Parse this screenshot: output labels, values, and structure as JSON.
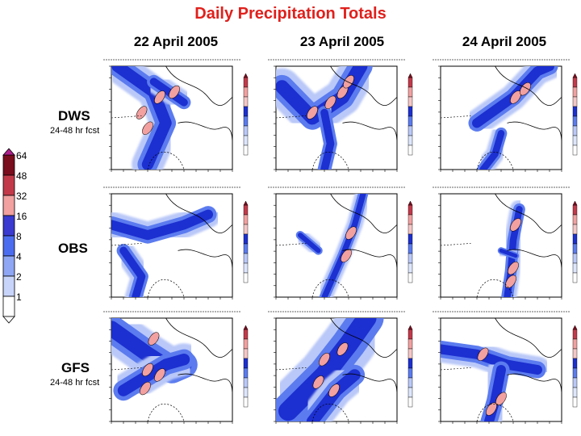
{
  "title": "Daily Precipitation Totals",
  "columns": [
    "22 April 2005",
    "23 April 2005",
    "24 April 2005"
  ],
  "rows": [
    {
      "label": "DWS",
      "sub": "24-48 hr fcst"
    },
    {
      "label": "OBS",
      "sub": ""
    },
    {
      "label": "GFS",
      "sub": "24-48 hr fcst"
    }
  ],
  "colorbar": {
    "levels": [
      "64",
      "48",
      "32",
      "16",
      "8",
      "4",
      "2",
      "1"
    ],
    "colors": [
      "#7a0d1e",
      "#c23a4a",
      "#f2a0a0",
      "#3a3ad0",
      "#4c6cf0",
      "#8ea6f4",
      "#c8d4fa",
      "#ffffff"
    ]
  },
  "colors": {
    "title": "#e0201c",
    "dark_blue": "#1c2fd0",
    "mid_blue": "#5b7bef",
    "light_blue": "#b9c8f8",
    "pink": "#f2a0a0",
    "red": "#c23a4a"
  }
}
